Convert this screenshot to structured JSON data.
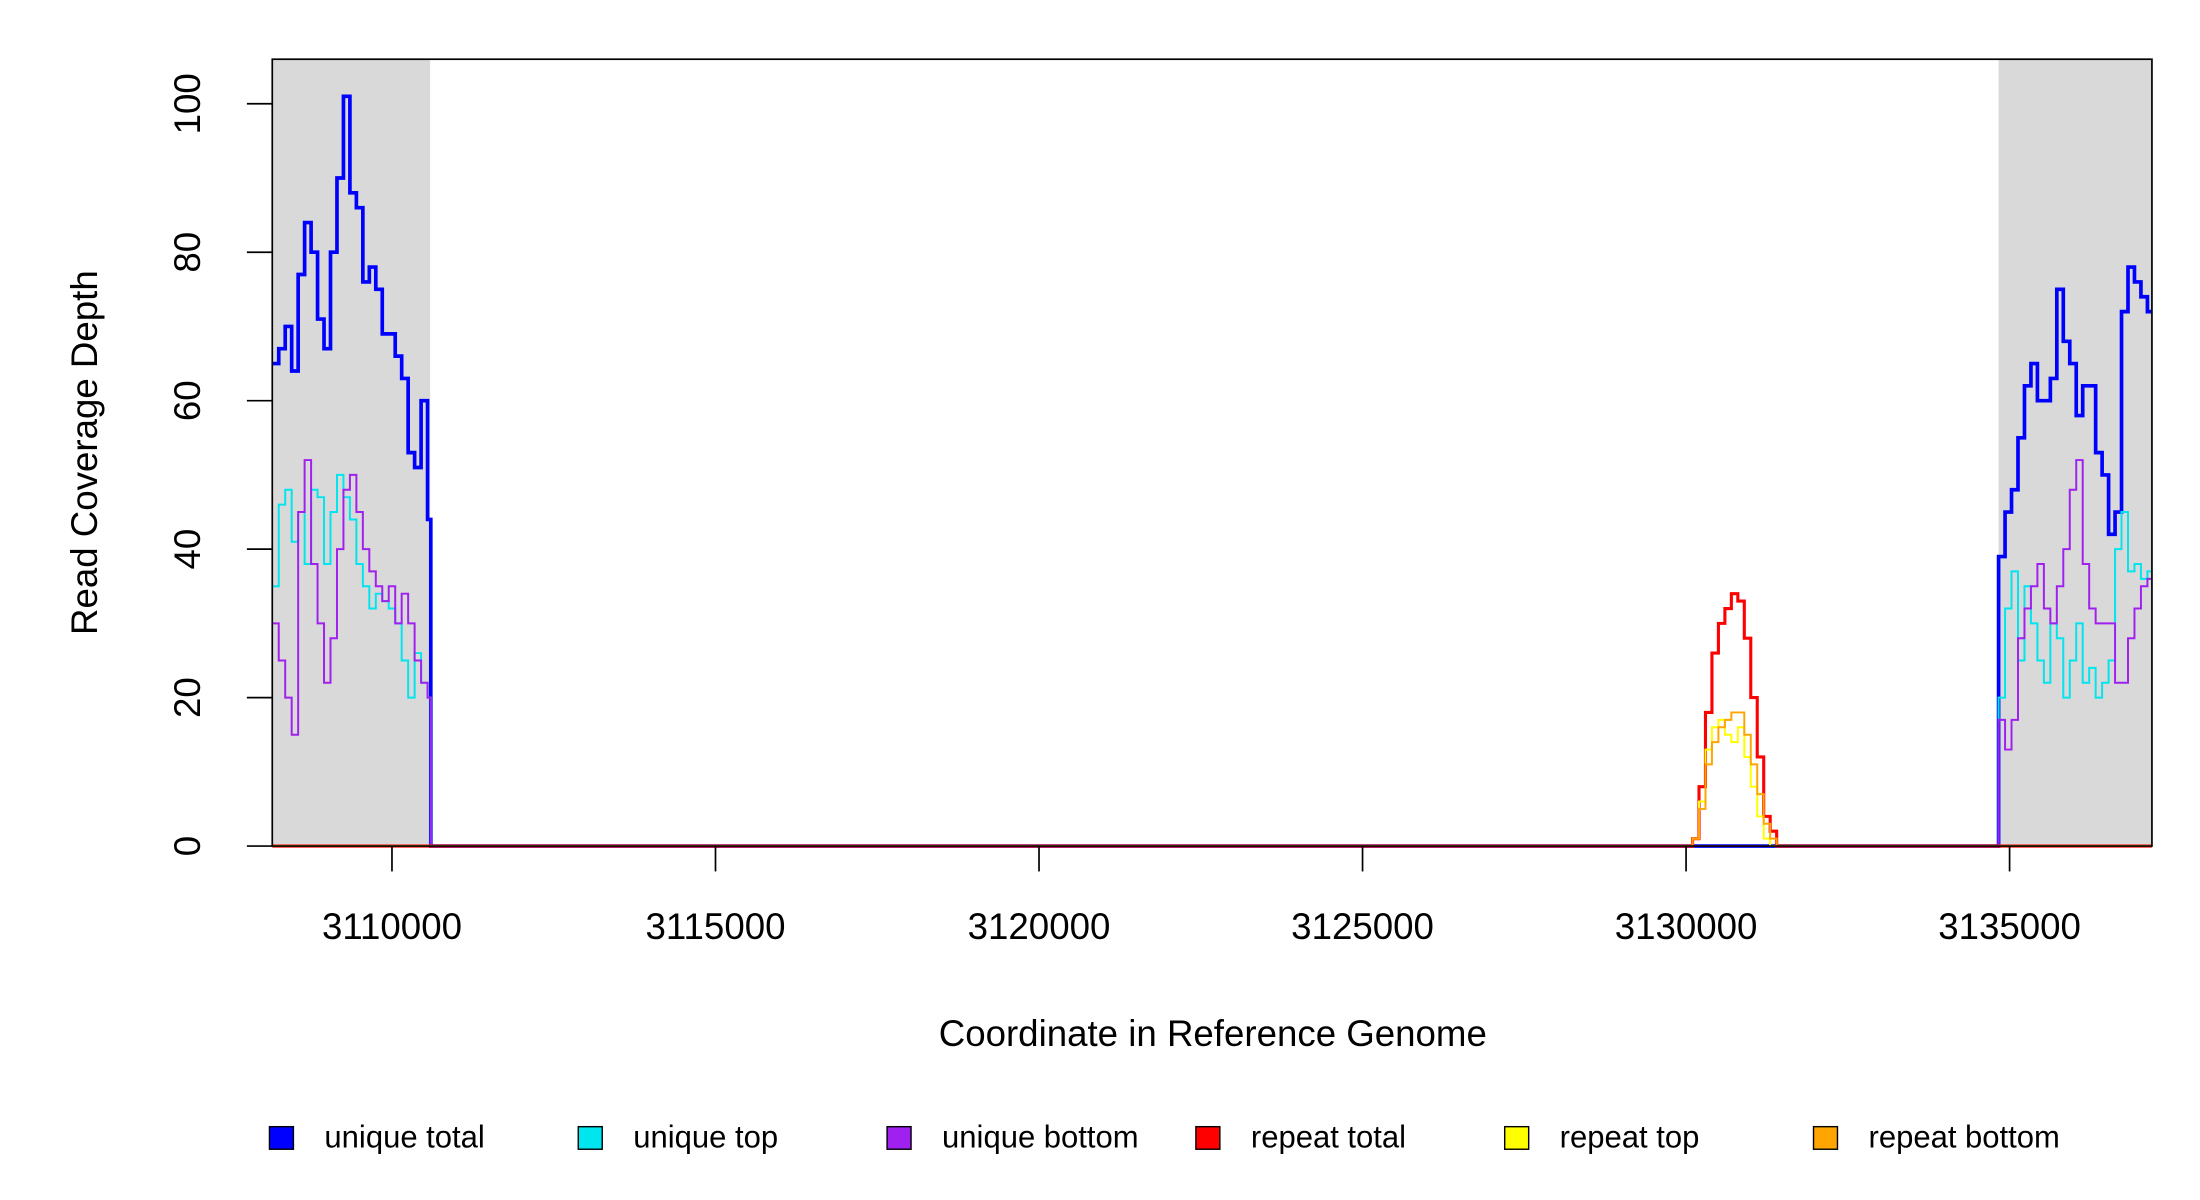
{
  "chart_data": {
    "type": "step",
    "xlabel": "Coordinate in Reference Genome",
    "ylabel": "Read Coverage Depth",
    "xlim": [
      3108150,
      3137200
    ],
    "ylim": [
      0,
      106
    ],
    "xticks": [
      3110000,
      3115000,
      3120000,
      3125000,
      3130000,
      3135000
    ],
    "yticks": [
      0,
      20,
      40,
      60,
      80,
      100
    ],
    "shaded_regions": [
      [
        3108150,
        3110590
      ],
      [
        3134830,
        3137200
      ]
    ],
    "shade_color": "#d9d9d9",
    "legend": "bottom",
    "series": [
      {
        "name": "unique total",
        "color": "#0000ff",
        "x": [
          3108150,
          3108250,
          3108350,
          3108450,
          3108550,
          3108650,
          3108750,
          3108850,
          3108950,
          3109050,
          3109150,
          3109250,
          3109350,
          3109450,
          3109550,
          3109650,
          3109750,
          3109850,
          3109950,
          3110050,
          3110150,
          3110250,
          3110350,
          3110450,
          3110550,
          3110600,
          3134830,
          3134930,
          3135030,
          3135130,
          3135230,
          3135330,
          3135430,
          3135530,
          3135630,
          3135730,
          3135830,
          3135930,
          3136030,
          3136130,
          3136230,
          3136330,
          3136430,
          3136530,
          3136630,
          3136730,
          3136830,
          3136930,
          3137030,
          3137130
        ],
        "values": [
          65,
          67,
          70,
          64,
          77,
          84,
          80,
          71,
          67,
          80,
          90,
          101,
          88,
          86,
          76,
          78,
          75,
          69,
          69,
          66,
          63,
          53,
          51,
          60,
          44,
          0,
          39,
          45,
          48,
          55,
          62,
          65,
          60,
          60,
          63,
          75,
          68,
          65,
          58,
          62,
          62,
          53,
          50,
          42,
          45,
          72,
          78,
          76,
          74,
          72
        ]
      },
      {
        "name": "unique top",
        "color": "#00e5ee",
        "x": [
          3108150,
          3108250,
          3108350,
          3108450,
          3108550,
          3108650,
          3108750,
          3108850,
          3108950,
          3109050,
          3109150,
          3109250,
          3109350,
          3109450,
          3109550,
          3109650,
          3109750,
          3109850,
          3109950,
          3110050,
          3110150,
          3110250,
          3110350,
          3110450,
          3110550,
          3110600,
          3134830,
          3134930,
          3135030,
          3135130,
          3135230,
          3135330,
          3135430,
          3135530,
          3135630,
          3135730,
          3135830,
          3135930,
          3136030,
          3136130,
          3136230,
          3136330,
          3136430,
          3136530,
          3136630,
          3136730,
          3136830,
          3136930,
          3137030,
          3137130
        ],
        "values": [
          35,
          46,
          48,
          41,
          45,
          38,
          48,
          47,
          38,
          45,
          50,
          47,
          44,
          38,
          35,
          32,
          34,
          33,
          32,
          30,
          25,
          20,
          26,
          22,
          20,
          0,
          20,
          32,
          37,
          25,
          35,
          30,
          25,
          22,
          30,
          28,
          20,
          25,
          30,
          22,
          24,
          20,
          22,
          25,
          40,
          45,
          37,
          38,
          36,
          37
        ]
      },
      {
        "name": "unique bottom",
        "color": "#a020f0",
        "x": [
          3108150,
          3108250,
          3108350,
          3108450,
          3108550,
          3108650,
          3108750,
          3108850,
          3108950,
          3109050,
          3109150,
          3109250,
          3109350,
          3109450,
          3109550,
          3109650,
          3109750,
          3109850,
          3109950,
          3110050,
          3110150,
          3110250,
          3110350,
          3110450,
          3110550,
          3110600,
          3134830,
          3134930,
          3135030,
          3135130,
          3135230,
          3135330,
          3135430,
          3135530,
          3135630,
          3135730,
          3135830,
          3135930,
          3136030,
          3136130,
          3136230,
          3136330,
          3136430,
          3136530,
          3136630,
          3136730,
          3136830,
          3136930,
          3137030,
          3137130
        ],
        "values": [
          30,
          25,
          20,
          15,
          45,
          52,
          38,
          30,
          22,
          28,
          40,
          48,
          50,
          45,
          40,
          37,
          35,
          33,
          35,
          30,
          34,
          30,
          25,
          22,
          20,
          0,
          17,
          13,
          17,
          28,
          32,
          35,
          38,
          32,
          30,
          35,
          40,
          48,
          52,
          38,
          32,
          30,
          30,
          30,
          22,
          22,
          28,
          32,
          35,
          36
        ]
      },
      {
        "name": "repeat total",
        "color": "#ff0000",
        "x": [
          3108150,
          3130100,
          3130200,
          3130300,
          3130400,
          3130500,
          3130600,
          3130700,
          3130800,
          3130900,
          3131000,
          3131100,
          3131200,
          3131300,
          3131400
        ],
        "values": [
          0,
          1,
          8,
          18,
          26,
          30,
          32,
          34,
          33,
          28,
          20,
          12,
          4,
          2,
          0
        ]
      },
      {
        "name": "repeat top",
        "color": "#ffff00",
        "x": [
          3108150,
          3130100,
          3130200,
          3130300,
          3130400,
          3130500,
          3130600,
          3130700,
          3130800,
          3130900,
          3131000,
          3131100,
          3131200,
          3131300,
          3131400
        ],
        "values": [
          0,
          1,
          6,
          13,
          16,
          17,
          15,
          14,
          16,
          12,
          8,
          4,
          1,
          0,
          0
        ]
      },
      {
        "name": "repeat bottom",
        "color": "#ffa500",
        "x": [
          3108150,
          3130100,
          3130200,
          3130300,
          3130400,
          3130500,
          3130600,
          3130700,
          3130800,
          3130900,
          3131000,
          3131100,
          3131200,
          3131300,
          3131400
        ],
        "values": [
          0,
          1,
          5,
          11,
          14,
          16,
          17,
          18,
          18,
          15,
          11,
          7,
          3,
          1,
          0
        ]
      }
    ]
  }
}
